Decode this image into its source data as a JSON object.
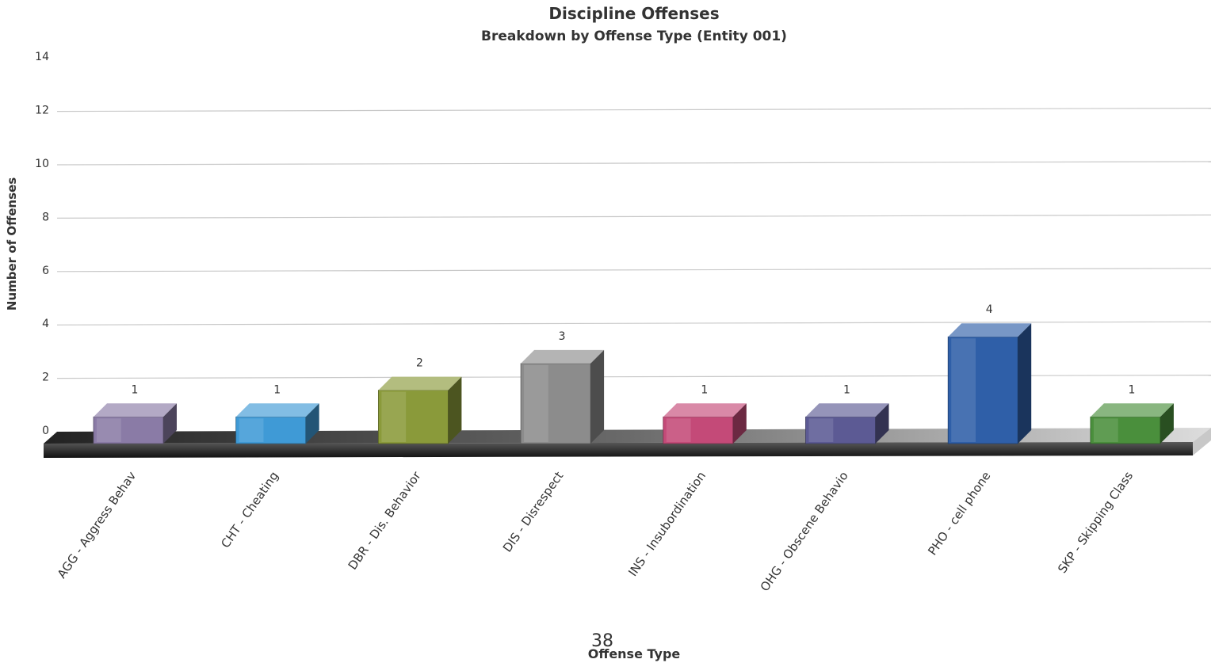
{
  "page_number": "38",
  "chart_data": {
    "type": "bar",
    "title": "Discipline Offenses",
    "subtitle": "Breakdown by Offense Type (Entity 001)",
    "xlabel": "Offense Type",
    "ylabel": "Number of Offenses",
    "ylim": [
      0,
      14
    ],
    "yticks": [
      0,
      2,
      4,
      6,
      8,
      10,
      12,
      14
    ],
    "grid": true,
    "categories": [
      "AGG - Aggress Behav",
      "CHT - Cheating",
      "DBR - Dis. Behavior",
      "DIS - Disrespect",
      "INS - Insubordination",
      "OHG - Obscene Behavio",
      "PHO - cell phone",
      "SKP - Skipping Class"
    ],
    "values": [
      1,
      1,
      2,
      3,
      1,
      1,
      4,
      1
    ],
    "colors": [
      "#8a7ba6",
      "#3f9ad6",
      "#8a9a3a",
      "#8c8c8c",
      "#c44a78",
      "#5c5a94",
      "#2f5fa8",
      "#4a8f3c"
    ]
  }
}
